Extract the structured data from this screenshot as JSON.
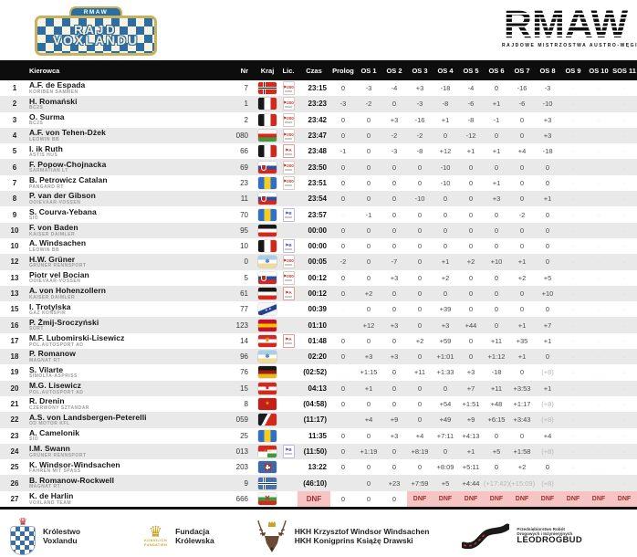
{
  "plate": {
    "top": "RMAW",
    "line1": "RAJD",
    "line2": "VOXLANDU"
  },
  "org": {
    "name": "RMAW",
    "tagline": "RAJDOWE MISTRZOSTWA AUSTRO-WĘGIER"
  },
  "accent_colors": {
    "header_bg": "#0d0d0d",
    "row_alt": "#e9e9e9",
    "dnf_bg": "#f7c4c4",
    "dnf_text": "#9c2f2f",
    "plate_blue": "#2e6da0",
    "plate_gold": "#c9b25f"
  },
  "lic_types": {
    "200": {
      "text": "200",
      "color": "#c43a2e",
      "border": "#d8c8c8"
    },
    "A": {
      "text": "A",
      "color": "#c43a2e",
      "border": "#e39b93"
    },
    "B": {
      "text": "B",
      "color": "#4b52c8",
      "border": "#b7bbe6"
    }
  },
  "flags": {
    "koriben": {
      "type": "nordic",
      "bg": "#d5281c",
      "cross": "#231311",
      "outline": "#e8e5df"
    },
    "bwr_v": {
      "type": "v",
      "stripes": [
        "#17171a",
        "#ffffff",
        "#d5281c"
      ]
    },
    "bwr_h": {
      "type": "h",
      "stripes": [
        "#17171a",
        "#ffffff",
        "#d5281c"
      ]
    },
    "wrg_h": {
      "type": "h",
      "stripes": [
        "#f5f5f5",
        "#d5281c",
        "#3f9b3a"
      ]
    },
    "slovakia": {
      "type": "h",
      "stripes": [
        "#ffffff",
        "#2b4f9e",
        "#d5281c"
      ],
      "emblem": "shield",
      "emblem_color": "#c22a24"
    },
    "byb_v": {
      "type": "v",
      "stripes": [
        "#2f6fd0",
        "#f2cf1c",
        "#2f6fd0"
      ]
    },
    "star": {
      "type": "h",
      "stripes": [
        "#aacde8",
        "#ffffff",
        "#f3da96"
      ],
      "emblem": "✻",
      "emblem_color": "#3a6fc4",
      "emblem_size": 6
    },
    "konspir": {
      "type": "diagonal",
      "bg": "#f3f6fa",
      "band": "#23418f",
      "stars": "#ffffff"
    },
    "spain": {
      "type": "h",
      "stripes": [
        "#c8102e",
        "#ffc400",
        "#c8102e"
      ]
    },
    "austria_gold": {
      "type": "h",
      "stripes": [
        "#d5281c",
        "#ffffff",
        "#d5281c"
      ],
      "emblem": "♛",
      "emblem_color": "#c9a227",
      "emblem_size": 6
    },
    "germany_dark": {
      "type": "h",
      "stripes": [
        "#17171a",
        "#9e1b12",
        "#e9bc17"
      ]
    },
    "austria_red": {
      "type": "h",
      "stripes": [
        "#d5281c",
        "#ffffff",
        "#d5281c"
      ],
      "emblem": "♛",
      "emblem_color": "#c03028",
      "emblem_size": 6
    },
    "red_star": {
      "type": "solid",
      "bg": "#c41f18",
      "emblem": "★",
      "emblem_color": "#e0a81f",
      "emblem_size": 5
    },
    "sealand": {
      "type": "sealand",
      "colors": [
        "#1b1b1d",
        "#ffffff",
        "#d5281c"
      ]
    },
    "austro_hungary": {
      "type": "ah",
      "left": [
        "#d5281c",
        "#ffffff"
      ],
      "right": [
        "#d5281c",
        "#ffffff",
        "#3f9b3a"
      ],
      "crest": "#c9a227"
    },
    "fahren": {
      "type": "solid",
      "bg": "#3e68a8",
      "emblem": "sqcross",
      "emblem_color": "#c22a24"
    },
    "romanow": {
      "type": "nordic",
      "bg": "#4a71ab",
      "cross": "#1f3f78",
      "outline": "#ffffff"
    },
    "voxland": {
      "type": "h",
      "stripes": [
        "#f5f5f5",
        "#3f9b3a",
        "#d5281c"
      ],
      "emblem": "✕",
      "emblem_color": "#c22a24",
      "emblem_size": 8
    }
  },
  "table": {
    "columns": [
      "Kierowca",
      "Nr",
      "Kraj",
      "Lic.",
      "Czas",
      "Prolog",
      "OS 1",
      "OS 2",
      "OS 3",
      "OS 4",
      "OS 5",
      "OS 6",
      "OS 7",
      "OS 8",
      "OS 9",
      "OS 10",
      "SOS 11"
    ],
    "rows": [
      {
        "pos": "1",
        "driver": "A.F. de Espada",
        "team": "KORIBEN SAMMEN",
        "nr": "7",
        "flag": "koriben",
        "lic": "200",
        "czas": "23:15",
        "cells": [
          "0",
          "-3",
          "-4",
          "+3",
          "-18",
          "-4",
          "0",
          "-16",
          "-3",
          "-",
          "-",
          "-"
        ]
      },
      {
        "pos": "2",
        "driver": "H. Romański",
        "team": "BC2S",
        "nr": "1",
        "flag": "bwr_v",
        "lic": "200",
        "czas": "23:23",
        "cells": [
          "-3",
          "-2",
          "0",
          "-3",
          "-8",
          "-6",
          "+1",
          "-6",
          "-10",
          "-",
          "-",
          "-"
        ]
      },
      {
        "pos": "3",
        "driver": "O. Surma",
        "team": "BC2S",
        "nr": "2",
        "flag": "bwr_v",
        "lic": "200",
        "czas": "23:42",
        "cells": [
          "0",
          "0",
          "+3",
          "-16",
          "+1",
          "-8",
          "-1",
          "0",
          "+3",
          "-",
          "-",
          "-"
        ]
      },
      {
        "pos": "4",
        "driver": "A.F. von Tehen-Dżek",
        "team": "LEOWIN BB",
        "nr": "080",
        "flag": "wrg_h",
        "lic": "200",
        "czas": "23:47",
        "cells": [
          "0",
          "0",
          "-2",
          "-2",
          "0",
          "-12",
          "0",
          "0",
          "+3",
          "-",
          "-",
          "-"
        ]
      },
      {
        "pos": "5",
        "driver": "I. ik Ruth",
        "team": "ASTIS HUS",
        "nr": "66",
        "flag": "bwr_v",
        "lic": "A",
        "czas": "23:48",
        "cells": [
          "-1",
          "0",
          "-3",
          "-8",
          "+12",
          "+1",
          "+1",
          "+4",
          "-18",
          "-",
          "-",
          "-"
        ]
      },
      {
        "pos": "6",
        "driver": "F. Popow-Chojnacka",
        "team": "SARMATIAN LT",
        "nr": "69",
        "flag": "slovakia",
        "lic": "200",
        "czas": "23:50",
        "cells": [
          "0",
          "0",
          "0",
          "0",
          "-10",
          "0",
          "0",
          "0",
          "0",
          "-",
          "-",
          "-"
        ]
      },
      {
        "pos": "7",
        "driver": "B. Petrowicz Catalan",
        "team": "PANGARD RT",
        "nr": "23",
        "flag": "byb_v",
        "lic": "200",
        "czas": "23:51",
        "cells": [
          "0",
          "0",
          "0",
          "0",
          "-10",
          "0",
          "+1",
          "0",
          "0",
          "-",
          "-",
          "-"
        ]
      },
      {
        "pos": "8",
        "driver": "P. van der Gibson",
        "team": "OOIEVAAR-VOSSEN",
        "nr": "11",
        "flag": "slovakia",
        "lic": null,
        "czas": "23:54",
        "cells": [
          "0",
          "0",
          "0",
          "-10",
          "0",
          "0",
          "+3",
          "0",
          "+1",
          "-",
          "-",
          "-"
        ]
      },
      {
        "pos": "9",
        "driver": "S. Courva-Yebana",
        "team": "SIO",
        "nr": "70",
        "flag": "byb_v",
        "lic": "B",
        "czas": "23:57",
        "cells": [
          "-",
          "-1",
          "0",
          "0",
          "0",
          "0",
          "0",
          "-2",
          "0",
          "-",
          "-",
          "-"
        ]
      },
      {
        "pos": "10",
        "driver": "F. von Baden",
        "team": "KAISER DAIMLER",
        "nr": "95",
        "flag": "bwr_h",
        "lic": null,
        "czas": "00:00",
        "cells": [
          "0",
          "0",
          "0",
          "0",
          "0",
          "0",
          "0",
          "0",
          "0",
          "-",
          "-",
          "-"
        ]
      },
      {
        "pos": "10",
        "driver": "A. Windsachen",
        "team": "LEOWIN BB",
        "nr": "10",
        "flag": "bwr_v",
        "lic": "B",
        "czas": "00:00",
        "cells": [
          "0",
          "0",
          "0",
          "0",
          "0",
          "0",
          "0",
          "0",
          "0",
          "-",
          "-",
          "-"
        ]
      },
      {
        "pos": "12",
        "driver": "H.W. Grüner",
        "team": "GRÜNER RENNSPORT",
        "nr": "0",
        "flag": "star",
        "lic": "200",
        "czas": "00:05",
        "cells": [
          "-2",
          "0",
          "-7",
          "0",
          "+1",
          "+2",
          "+10",
          "+1",
          "0",
          "-",
          "-",
          "-"
        ]
      },
      {
        "pos": "13",
        "driver": "Piotr vel Bocian",
        "team": "OOIEVAAR-VOSSEN",
        "nr": "5",
        "flag": "slovakia",
        "lic": "200",
        "czas": "00:12",
        "cells": [
          "0",
          "0",
          "+3",
          "0",
          "+2",
          "0",
          "0",
          "+2",
          "+5",
          "-",
          "-",
          "-"
        ]
      },
      {
        "pos": "13",
        "driver": "A. von Hohenzollern",
        "team": "KAISER DAIMLER",
        "nr": "61",
        "flag": "bwr_h",
        "lic": "A",
        "czas": "00:12",
        "cells": [
          "0",
          "+2",
          "0",
          "0",
          "0",
          "0",
          "0",
          "0",
          "+10",
          "-",
          "-",
          "-"
        ]
      },
      {
        "pos": "15",
        "driver": "I. Trotylska",
        "team": "GAZ KONSPIR",
        "nr": "77",
        "flag": "konspir",
        "lic": null,
        "czas": "00:39",
        "cells": [
          "-",
          "0",
          "0",
          "0",
          "+39",
          "0",
          "0",
          "0",
          "0",
          "-",
          "-",
          "-"
        ]
      },
      {
        "pos": "16",
        "driver": "P. Żmij-Sroczyński",
        "team": "SORT",
        "nr": "123",
        "flag": "spain",
        "lic": null,
        "czas": "01:10",
        "cells": [
          "-",
          "+12",
          "+3",
          "0",
          "+3",
          "+44",
          "0",
          "+1",
          "+7",
          "-",
          "-",
          "-"
        ]
      },
      {
        "pos": "17",
        "driver": "M.F. Lubomirski-Lisewicz",
        "team": "POL.AUTOSPORT AD",
        "nr": "14",
        "flag": "austria_gold",
        "lic": "A",
        "czas": "01:48",
        "cells": [
          "0",
          "0",
          "0",
          "+2",
          "+59",
          "0",
          "+11",
          "+35",
          "+1",
          "-",
          "-",
          "-"
        ]
      },
      {
        "pos": "18",
        "driver": "P. Romanow",
        "team": "MAGNAT RT",
        "nr": "96",
        "flag": "star",
        "lic": null,
        "czas": "02:20",
        "cells": [
          "0",
          "+3",
          "+3",
          "0",
          "+1:01",
          "0",
          "+1:12",
          "+1",
          "0",
          "-",
          "-",
          "-"
        ]
      },
      {
        "pos": "19",
        "driver": "S. Vilarte",
        "team": "SIMOLTA-ASPRISS",
        "nr": "76",
        "flag": "germany_dark",
        "lic": null,
        "czas": "(02:52)",
        "cells": [
          "-",
          "+1:15",
          "0",
          "+11",
          "+1:33",
          "+3",
          "-18",
          "0",
          "(+8)",
          "-",
          "-",
          "-"
        ]
      },
      {
        "pos": "20",
        "driver": "M.G. Lisewicz",
        "team": "POL.AUTOSPORT AD",
        "nr": "15",
        "flag": "austria_red",
        "lic": null,
        "czas": "04:13",
        "cells": [
          "0",
          "+1",
          "0",
          "0",
          "0",
          "+7",
          "+11",
          "+3:53",
          "+1",
          "-",
          "-",
          "-"
        ]
      },
      {
        "pos": "21",
        "driver": "R. Drenin",
        "team": "CZERWONY SZTANDAR",
        "nr": "8",
        "flag": "red_star",
        "lic": null,
        "czas": "(04:58)",
        "cells": [
          "0",
          "0",
          "0",
          "0",
          "+54",
          "+1:51",
          "+48",
          "+1:17",
          "(+8)",
          "-",
          "-",
          "-"
        ]
      },
      {
        "pos": "22",
        "driver": "A.S. von Landsbergen-Peterelli",
        "team": "OD MOTOR KFL",
        "nr": "059",
        "flag": "sealand",
        "lic": null,
        "czas": "(11:17)",
        "cells": [
          "-",
          "+4",
          "+9",
          "0",
          "+49",
          "+9",
          "+6:15",
          "+3:43",
          "(+8)",
          "-",
          "-",
          "-"
        ]
      },
      {
        "pos": "23",
        "driver": "A. Camelonik",
        "team": "SIO",
        "nr": "25",
        "flag": "byb_v",
        "lic": null,
        "czas": "11:35",
        "cells": [
          "0",
          "0",
          "+3",
          "+4",
          "+7:11",
          "+4:13",
          "0",
          "0",
          "+4",
          "-",
          "-",
          "-"
        ]
      },
      {
        "pos": "24",
        "driver": "I.M. Swann",
        "team": "GRÜNER RENNSPORT",
        "nr": "013",
        "flag": "austro_hungary",
        "lic": "B",
        "czas": "(11:50)",
        "cells": [
          "0",
          "+1:19",
          "0",
          "+8:19",
          "0",
          "+1",
          "+5",
          "+1:58",
          "(+8)",
          "-",
          "-",
          "-"
        ]
      },
      {
        "pos": "25",
        "driver": "K. Windsor-Windsachen",
        "team": "FAHREN MIT SPASS",
        "nr": "203",
        "flag": "fahren",
        "lic": null,
        "czas": "13:22",
        "cells": [
          "0",
          "0",
          "0",
          "0",
          "+8:09",
          "+5:11",
          "0",
          "+2",
          "0",
          "-",
          "-",
          "-"
        ]
      },
      {
        "pos": "26",
        "driver": "B. Romanow-Rockwell",
        "team": "MAGNAT RT",
        "nr": "9",
        "flag": "romanow",
        "lic": null,
        "czas": "(46:10)",
        "cells": [
          "-",
          "0",
          "+23",
          "+7:59",
          "+5",
          "+4:44",
          "(+17:42)",
          "(+15:09)",
          "(+8)",
          "-",
          "-",
          "-"
        ]
      },
      {
        "pos": "27",
        "driver": "K. de Harlin",
        "team": "VOXLAND TEAM",
        "nr": "666",
        "flag": "voxland",
        "lic": null,
        "czas": "DNF",
        "cells": [
          "0",
          "0",
          "0",
          "DNF",
          "DNF",
          "DNF",
          "DNF",
          "DNF",
          "DNF",
          "DNF",
          "DNF",
          "DNF"
        ]
      }
    ]
  },
  "footer": {
    "kingdom": {
      "line1": "Królestwo",
      "line2": "Voxlandu"
    },
    "foundation": {
      "caption1": "KONIGLICH",
      "caption2": "FUNDATIEN",
      "line1": "Fundacja",
      "line2": "Królewska"
    },
    "patron": {
      "line1": "HKH Krzysztof Windsor Windsachen",
      "line2": "HKH Konigprins Książę Drawski"
    },
    "sponsor": {
      "caption1": "Przedsiębiorstwo Robót",
      "caption2": "Drogowych i Inżynieryjnych",
      "name": "LEODROGBUD"
    }
  }
}
